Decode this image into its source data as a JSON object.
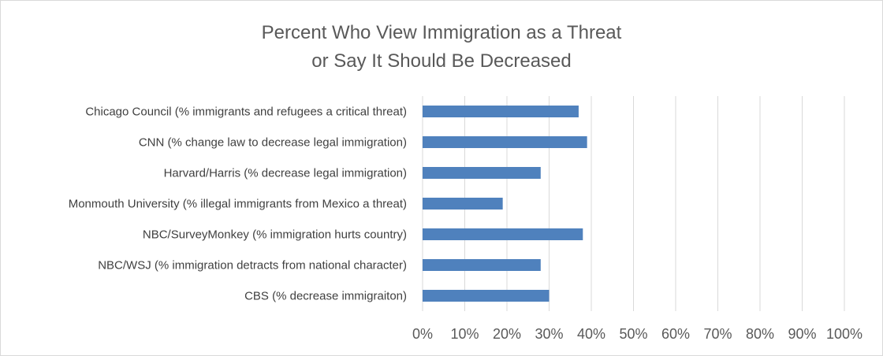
{
  "chart_data": {
    "type": "bar",
    "orientation": "horizontal",
    "title_lines": [
      "Percent Who View Immigration as a Threat",
      "or Say It Should Be Decreased"
    ],
    "categories": [
      "Chicago Council (% immigrants and refugees a critical threat)",
      "CNN (% change law to decrease legal immigration)",
      "Harvard/Harris (% decrease legal immigration)",
      "Monmouth University (% illegal immigrants from Mexico a threat)",
      "NBC/SurveyMonkey (% immigration hurts country)",
      "NBC/WSJ (% immigration detracts from national character)",
      "CBS (% decrease immigraiton)"
    ],
    "values": [
      37,
      39,
      28,
      19,
      38,
      28,
      30
    ],
    "xlim": [
      0,
      100
    ],
    "xticks": [
      "0%",
      "10%",
      "20%",
      "30%",
      "40%",
      "50%",
      "60%",
      "70%",
      "80%",
      "90%",
      "100%"
    ],
    "grid": true,
    "legend": "none",
    "colors": {
      "bar": "#4f81bd",
      "grid": "#d9d9d9"
    }
  }
}
